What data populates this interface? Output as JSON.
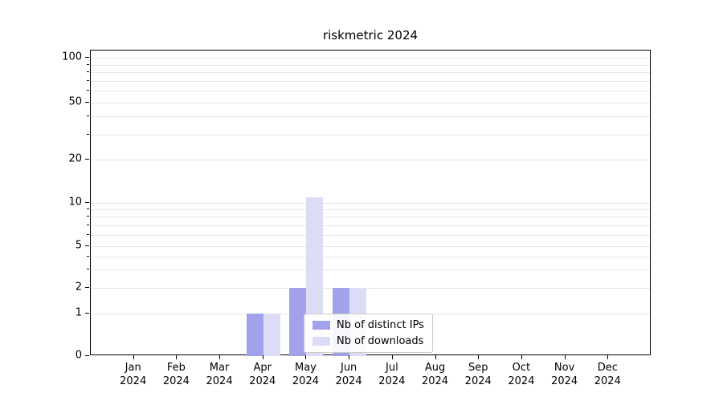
{
  "chart_data": {
    "type": "bar",
    "title": "riskmetric 2024",
    "categories": [
      "Jan",
      "Feb",
      "Mar",
      "Apr",
      "May",
      "Jun",
      "Jul",
      "Aug",
      "Sep",
      "Oct",
      "Nov",
      "Dec"
    ],
    "category_year": "2024",
    "series": [
      {
        "name": "Nb of distinct IPs",
        "color": "#a2a2eb",
        "values": [
          0,
          0,
          0,
          1,
          2,
          2,
          0,
          0,
          0,
          0,
          0,
          0
        ]
      },
      {
        "name": "Nb of downloads",
        "color": "#dcdcf7",
        "values": [
          0,
          0,
          0,
          1,
          11,
          2,
          0,
          0,
          0,
          0,
          0,
          0
        ]
      }
    ],
    "xlabel": "",
    "ylabel": "",
    "yscale": "log-like (0 shown at axis bottom)",
    "ylim": [
      0,
      110
    ],
    "ytick_labels": [
      0,
      1,
      2,
      5,
      10,
      20,
      50,
      100
    ],
    "grid_values": [
      1,
      2,
      3,
      4,
      5,
      6,
      7,
      8,
      9,
      10,
      20,
      30,
      40,
      50,
      60,
      70,
      80,
      90,
      100
    ],
    "grid": true,
    "legend_position": "lower center",
    "colors": {
      "grid": "#e7e7e7",
      "spine": "#000000",
      "legend_border": "#cccccc"
    }
  }
}
